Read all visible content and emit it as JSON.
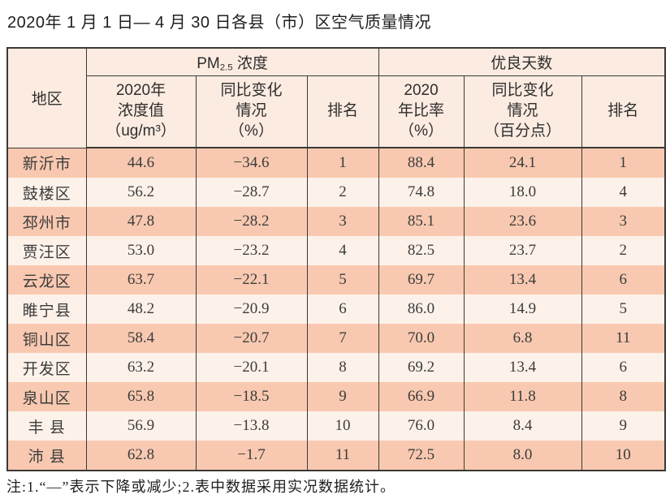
{
  "page": {
    "title": "2020年 1 月 1 日— 4 月 30 日各县（市）区空气质量情况",
    "note": "注:1.“—”表示下降或减少;2.表中数据采用实况数据统计。"
  },
  "colors": {
    "row_odd": "#f8c9b0",
    "row_even": "#fdf2ea",
    "header_bg": "#fcebe0",
    "border": "#3b3836"
  },
  "table": {
    "headers": {
      "region": "地区",
      "pm_prefix": "PM",
      "pm_sub": "2.5",
      "pm_suffix": " 浓度",
      "good_days_group": "优良天数",
      "sub_pm_value": "2020年\n浓度值\n（ug/m³）",
      "sub_pm_change": "同比变化\n情况\n（%）",
      "sub_pm_rank": "排名",
      "sub_good_ratio": "2020\n年比率\n（%）",
      "sub_good_change": "同比变化\n情况\n（百分点）",
      "sub_good_rank": "排名"
    },
    "rows": [
      {
        "region": "新沂市",
        "pm_value": "44.6",
        "pm_change": "−34.6",
        "pm_rank": "1",
        "good_ratio": "88.4",
        "good_change": "24.1",
        "good_rank": "1"
      },
      {
        "region": "鼓楼区",
        "pm_value": "56.2",
        "pm_change": "−28.7",
        "pm_rank": "2",
        "good_ratio": "74.8",
        "good_change": "18.0",
        "good_rank": "4"
      },
      {
        "region": "邳州市",
        "pm_value": "47.8",
        "pm_change": "−28.2",
        "pm_rank": "3",
        "good_ratio": "85.1",
        "good_change": "23.6",
        "good_rank": "3"
      },
      {
        "region": "贾汪区",
        "pm_value": "53.0",
        "pm_change": "−23.2",
        "pm_rank": "4",
        "good_ratio": "82.5",
        "good_change": "23.7",
        "good_rank": "2"
      },
      {
        "region": "云龙区",
        "pm_value": "63.7",
        "pm_change": "−22.1",
        "pm_rank": "5",
        "good_ratio": "69.7",
        "good_change": "13.4",
        "good_rank": "6"
      },
      {
        "region": "睢宁县",
        "pm_value": "48.2",
        "pm_change": "−20.9",
        "pm_rank": "6",
        "good_ratio": "86.0",
        "good_change": "14.9",
        "good_rank": "5"
      },
      {
        "region": "铜山区",
        "pm_value": "58.4",
        "pm_change": "−20.7",
        "pm_rank": "7",
        "good_ratio": "70.0",
        "good_change": "6.8",
        "good_rank": "11"
      },
      {
        "region": "开发区",
        "pm_value": "63.2",
        "pm_change": "−20.1",
        "pm_rank": "8",
        "good_ratio": "69.2",
        "good_change": "13.4",
        "good_rank": "6"
      },
      {
        "region": "泉山区",
        "pm_value": "65.8",
        "pm_change": "−18.5",
        "pm_rank": "9",
        "good_ratio": "66.9",
        "good_change": "11.8",
        "good_rank": "8"
      },
      {
        "region": "丰 县",
        "pm_value": "56.9",
        "pm_change": "−13.8",
        "pm_rank": "10",
        "good_ratio": "76.0",
        "good_change": "8.4",
        "good_rank": "9"
      },
      {
        "region": "沛 县",
        "pm_value": "62.8",
        "pm_change": "−1.7",
        "pm_rank": "11",
        "good_ratio": "72.5",
        "good_change": "8.0",
        "good_rank": "10"
      }
    ]
  }
}
